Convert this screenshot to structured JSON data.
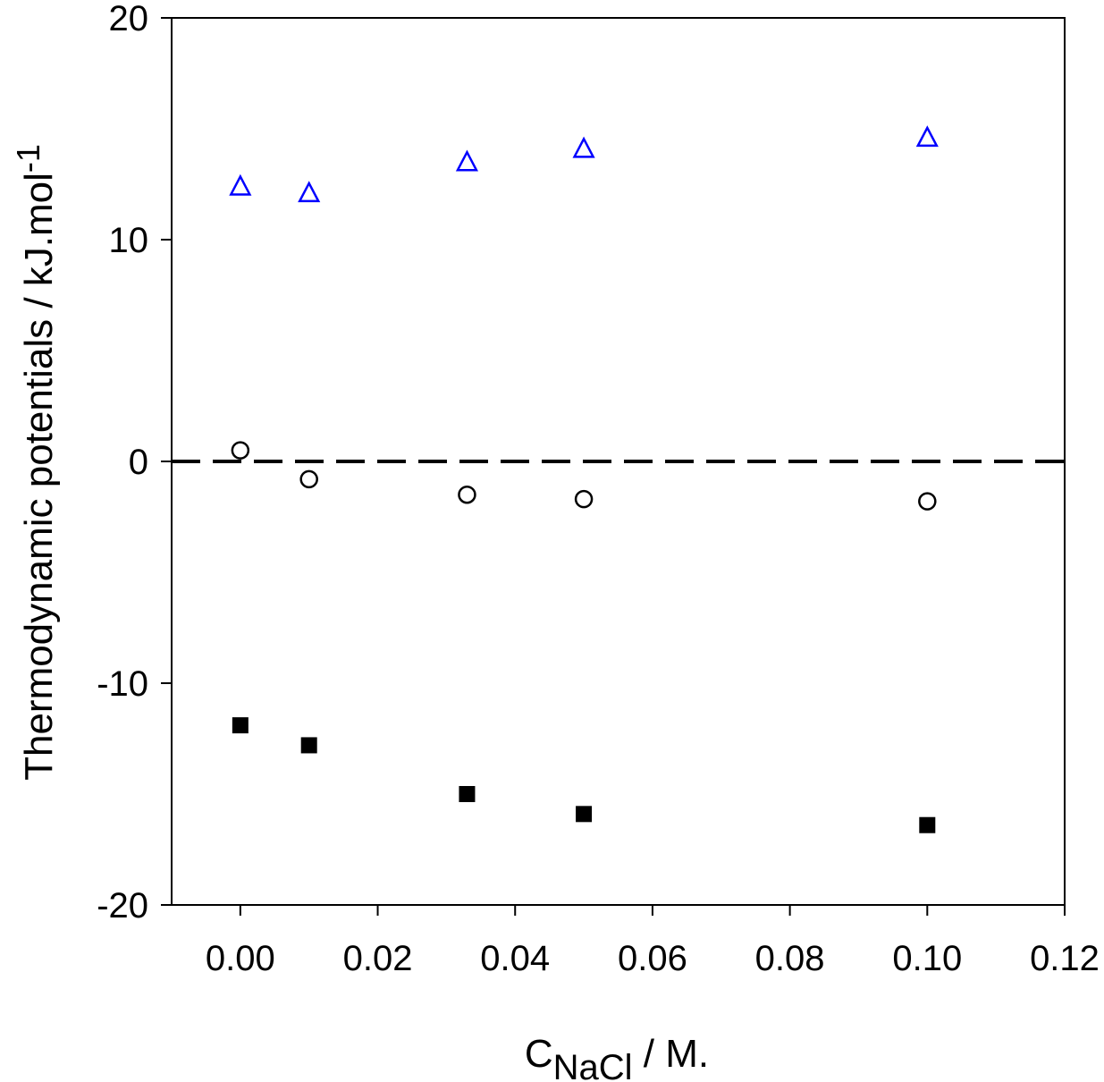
{
  "chart_data": {
    "type": "scatter",
    "title": "",
    "xlabel": {
      "main": "C",
      "sub": "NaCl",
      "suffix": " / M."
    },
    "ylabel": {
      "main": "Thermodynamic potentials / kJ.mol",
      "sup": "-1"
    },
    "xlim": [
      -0.01,
      0.12
    ],
    "ylim": [
      -20,
      20
    ],
    "xticks": [
      0.0,
      0.02,
      0.04,
      0.06,
      0.08,
      0.1,
      0.12
    ],
    "xtick_labels": [
      "0.00",
      "0.02",
      "0.04",
      "0.06",
      "0.08",
      "0.10",
      "0.12"
    ],
    "yticks": [
      -20,
      -10,
      0,
      10,
      20
    ],
    "ytick_labels": [
      "-20",
      "-10",
      "0",
      "10",
      "20"
    ],
    "grid": false,
    "legend": false,
    "reference_line": {
      "y": 0,
      "style": "dashed",
      "color": "#000000"
    },
    "series": [
      {
        "marker": "open-triangle",
        "color": "#0000ff",
        "x": [
          0.0,
          0.01,
          0.033,
          0.05,
          0.1
        ],
        "y": [
          12.4,
          12.1,
          13.5,
          14.1,
          14.6
        ]
      },
      {
        "marker": "open-circle",
        "color": "#000000",
        "x": [
          0.0,
          0.01,
          0.033,
          0.05,
          0.1
        ],
        "y": [
          0.5,
          -0.8,
          -1.5,
          -1.7,
          -1.8
        ]
      },
      {
        "marker": "filled-square",
        "color": "#000000",
        "x": [
          0.0,
          0.01,
          0.033,
          0.05,
          0.1
        ],
        "y": [
          -11.9,
          -12.8,
          -15.0,
          -15.9,
          -16.4
        ]
      }
    ]
  }
}
